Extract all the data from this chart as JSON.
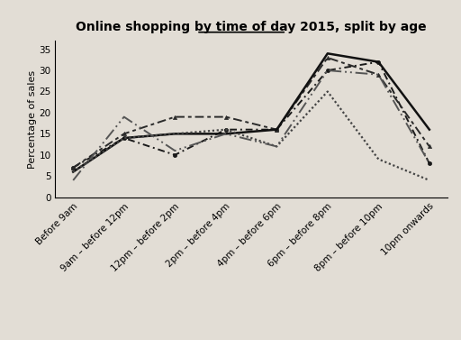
{
  "title": "Online shopping by time of day 2015, split by age",
  "title_underline_word": "time of day",
  "ylabel": "Percentage of sales",
  "ylim": [
    0,
    37
  ],
  "yticks": [
    0,
    5,
    10,
    15,
    20,
    25,
    30,
    35
  ],
  "x_labels": [
    "Before 9am",
    "9am – before 12pm",
    "12pm – before 2pm",
    "2pm – before 4pm",
    "4pm – before 6pm",
    "6pm – before 8pm",
    "8pm – before 10pm",
    "10pm onwards"
  ],
  "series": {
    "16-24 years": [
      7,
      14,
      10,
      16,
      16,
      30,
      32,
      8
    ],
    "25-34 years": [
      7,
      15,
      19,
      19,
      16,
      33,
      29,
      12
    ],
    "35-44 years": [
      6,
      14,
      15,
      15,
      16,
      34,
      32,
      16
    ],
    "45-59 years": [
      6,
      14,
      15,
      16,
      12,
      25,
      9,
      4
    ],
    "60+ years": [
      4,
      19,
      11,
      15,
      12,
      30,
      29,
      8
    ]
  },
  "background_color": "#e2ddd5",
  "title_fontsize": 10,
  "ylabel_fontsize": 8,
  "tick_fontsize": 7.5,
  "legend_fontsize": 7.5
}
